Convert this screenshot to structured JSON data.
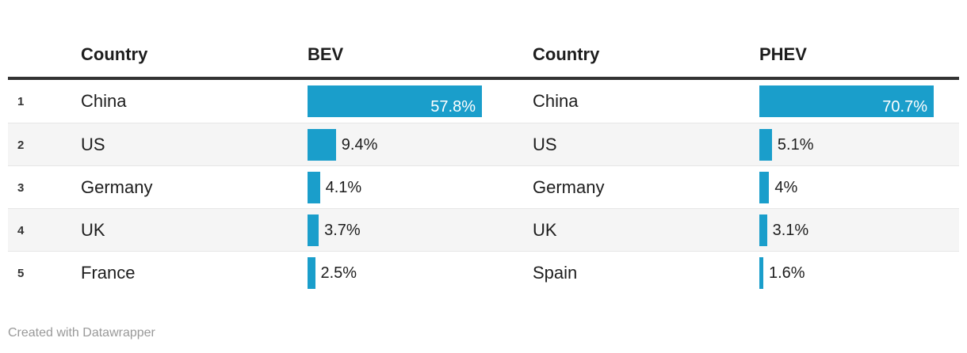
{
  "table": {
    "columns": [
      {
        "key": "rank",
        "label": ""
      },
      {
        "key": "country_bev",
        "label": "Country"
      },
      {
        "key": "bev",
        "label": "BEV"
      },
      {
        "key": "country_phev",
        "label": "Country"
      },
      {
        "key": "phev",
        "label": "PHEV"
      }
    ],
    "rows": [
      {
        "rank": "1",
        "country_bev": "China",
        "bev": 57.8,
        "bev_label": "57.8%",
        "country_phev": "China",
        "phev": 70.7,
        "phev_label": "70.7%"
      },
      {
        "rank": "2",
        "country_bev": "US",
        "bev": 9.4,
        "bev_label": "9.4%",
        "country_phev": "US",
        "phev": 5.1,
        "phev_label": "5.1%"
      },
      {
        "rank": "3",
        "country_bev": "Germany",
        "bev": 4.1,
        "bev_label": "4.1%",
        "country_phev": "Germany",
        "phev": 4.0,
        "phev_label": "4%"
      },
      {
        "rank": "4",
        "country_bev": "UK",
        "bev": 3.7,
        "bev_label": "3.7%",
        "country_phev": "UK",
        "phev": 3.1,
        "phev_label": "3.1%"
      },
      {
        "rank": "5",
        "country_bev": "France",
        "bev": 2.5,
        "bev_label": "2.5%",
        "country_phev": "Spain",
        "phev": 1.6,
        "phev_label": "1.6%"
      }
    ]
  },
  "footer": {
    "credit": "Created with Datawrapper"
  },
  "colors": {
    "bar": "#1a9ecb",
    "header_rule": "#333333",
    "row_stripe": "#f5f5f5",
    "row_separator": "#e6e6e6",
    "text": "#1d1d1d",
    "value_inside_text": "#ffffff",
    "credit_text": "#999999"
  },
  "chart_data": {
    "type": "table",
    "title": "",
    "columns": [
      "rank",
      "Country",
      "BEV",
      "Country",
      "PHEV"
    ],
    "bar_columns": [
      "BEV",
      "PHEV"
    ],
    "value_format": "percent",
    "bar_scale": "per-column-max",
    "series": [
      {
        "name": "BEV",
        "categories": [
          "China",
          "US",
          "Germany",
          "UK",
          "France"
        ],
        "values": [
          57.8,
          9.4,
          4.1,
          3.7,
          2.5
        ]
      },
      {
        "name": "PHEV",
        "categories": [
          "China",
          "US",
          "Germany",
          "UK",
          "Spain"
        ],
        "values": [
          70.7,
          5.1,
          4.0,
          3.1,
          1.6
        ]
      }
    ],
    "rows": [
      [
        1,
        "China",
        57.8,
        "China",
        70.7
      ],
      [
        2,
        "US",
        9.4,
        "US",
        5.1
      ],
      [
        3,
        "Germany",
        4.1,
        "Germany",
        4.0
      ],
      [
        4,
        "UK",
        3.7,
        "UK",
        3.1
      ],
      [
        5,
        "France",
        2.5,
        "Spain",
        1.6
      ]
    ]
  }
}
